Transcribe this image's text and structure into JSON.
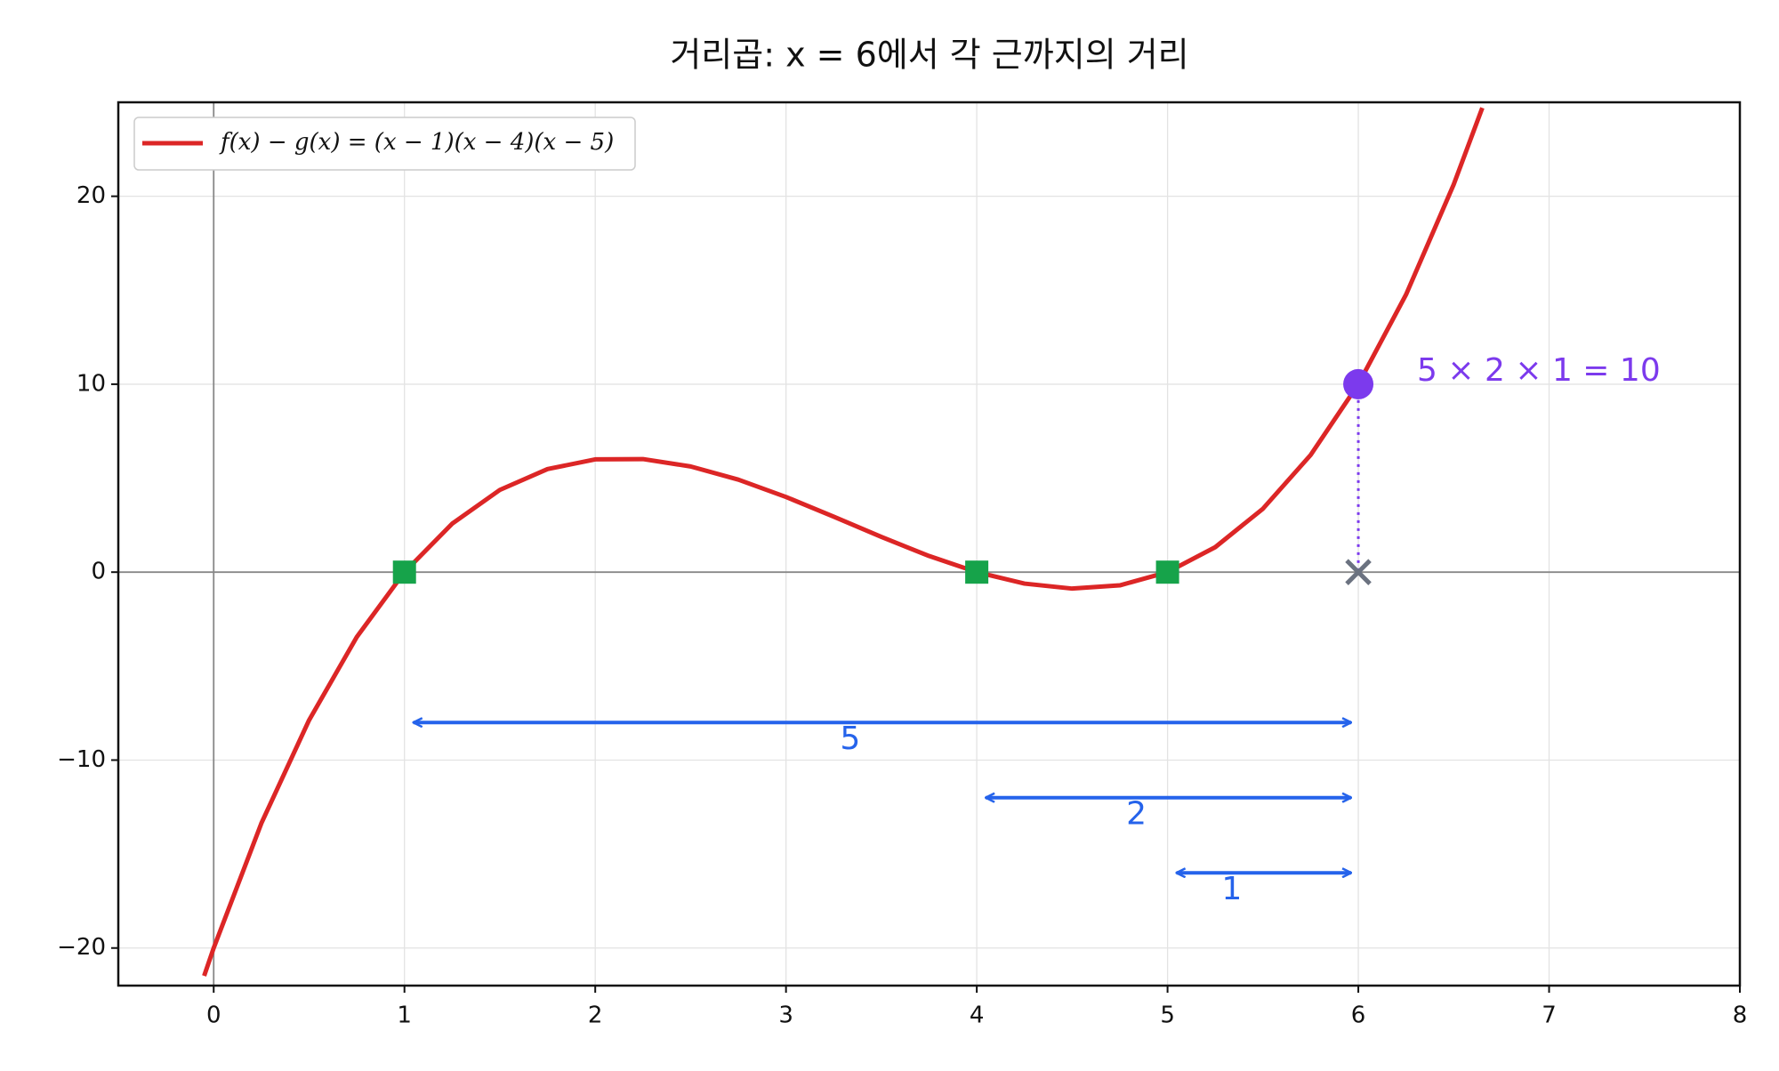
{
  "chart_data": {
    "type": "line",
    "title": "거리곱: x = 6에서 각 근까지의 거리",
    "xlim": [
      -0.5,
      8
    ],
    "ylim": [
      -22,
      25
    ],
    "xticks": [
      0,
      1,
      2,
      3,
      4,
      5,
      6,
      7,
      8
    ],
    "yticks": [
      {
        "value": -20,
        "label": "−20"
      },
      {
        "value": -10,
        "label": "−10"
      },
      0,
      10,
      20
    ],
    "grid": true,
    "legend_loc": "upper left",
    "series": [
      {
        "name": "f(x) − g(x) = (x − 1)(x − 4)(x − 5)",
        "color": "#dc2626",
        "x": [
          -0.05,
          0,
          0.25,
          0.5,
          0.75,
          1,
          1.25,
          1.5,
          1.75,
          2,
          2.25,
          2.5,
          2.75,
          3,
          3.25,
          3.5,
          3.75,
          4,
          4.25,
          4.5,
          4.75,
          5,
          5.25,
          5.5,
          5.75,
          6,
          6.25,
          6.5,
          6.65
        ],
        "values": [
          -21.48,
          -20,
          -13.36,
          -7.875,
          -3.453,
          0,
          2.578,
          4.375,
          5.484,
          6,
          6.016,
          5.625,
          4.922,
          4,
          2.953,
          1.875,
          0.859,
          0,
          -0.609,
          -0.875,
          -0.703,
          0,
          1.328,
          3.375,
          6.234,
          10,
          14.766,
          20.625,
          24.705
        ]
      }
    ],
    "roots": {
      "x": [
        1,
        4,
        5
      ],
      "values": [
        0,
        0,
        0
      ],
      "color": "#16a34a"
    },
    "point": {
      "x": 6,
      "value": 10,
      "color": "#7c3aed",
      "label": "5 × 2 × 1 = 10"
    },
    "base": {
      "x": 6,
      "value": 0,
      "color": "#6b7280"
    },
    "distances": {
      "color": "#2563eb",
      "items": [
        {
          "from": 1,
          "to": 6,
          "y": -8,
          "label": "5"
        },
        {
          "from": 4,
          "to": 6,
          "y": -12,
          "label": "2"
        },
        {
          "from": 5,
          "to": 6,
          "y": -16,
          "label": "1"
        }
      ]
    }
  }
}
